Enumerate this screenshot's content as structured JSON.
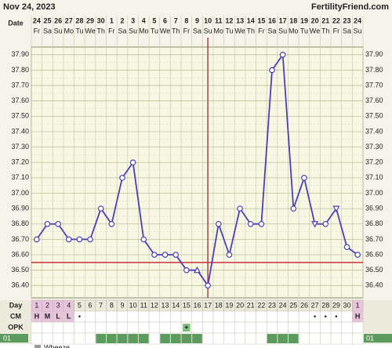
{
  "chart_data": {
    "type": "line",
    "title": "Nov 24, 2023",
    "source": "FertilityFriend.com",
    "date_label": "Date",
    "dates": [
      "24",
      "25",
      "26",
      "27",
      "28",
      "29",
      "30",
      "1",
      "2",
      "3",
      "4",
      "5",
      "6",
      "7",
      "8",
      "9",
      "10",
      "11",
      "12",
      "13",
      "14",
      "15",
      "16",
      "17",
      "18",
      "19",
      "20",
      "21",
      "22",
      "23",
      "24"
    ],
    "weekdays": [
      "Fr",
      "Sa",
      "Su",
      "Mo",
      "Tu",
      "We",
      "Th",
      "Fr",
      "Sa",
      "Su",
      "Mo",
      "Tu",
      "We",
      "Th",
      "Fr",
      "Sa",
      "Su",
      "Mo",
      "Tu",
      "We",
      "Th",
      "Fr",
      "Sa",
      "Su",
      "Mo",
      "Tu",
      "We",
      "Th",
      "Fr",
      "Sa",
      "Su"
    ],
    "day_label": "Day",
    "days": [
      1,
      2,
      3,
      4,
      5,
      6,
      7,
      8,
      9,
      10,
      11,
      12,
      13,
      14,
      15,
      16,
      17,
      18,
      19,
      20,
      21,
      22,
      23,
      24,
      25,
      26,
      27,
      28,
      29,
      30,
      1
    ],
    "values": [
      36.7,
      36.8,
      36.8,
      36.7,
      36.7,
      36.7,
      36.9,
      36.8,
      37.1,
      37.2,
      36.7,
      36.6,
      36.6,
      36.6,
      36.5,
      36.5,
      36.4,
      36.8,
      36.6,
      36.9,
      36.8,
      36.8,
      37.8,
      37.9,
      36.9,
      37.1,
      36.8,
      36.8,
      36.9,
      36.65,
      36.6
    ],
    "markers": [
      "circle",
      "circle",
      "circle",
      "circle",
      "circle",
      "circle",
      "circle",
      "circle",
      "circle",
      "circle",
      "circle",
      "circle",
      "circle",
      "circle",
      "circle",
      "triangle-up",
      "circle",
      "circle",
      "circle",
      "circle",
      "circle",
      "circle",
      "circle",
      "circle",
      "circle",
      "circle",
      "triangle-down",
      "circle",
      "triangle-down",
      "circle",
      "circle"
    ],
    "color": "#4b3fb4",
    "ylim": [
      36.32,
      37.95
    ],
    "yticks": [
      {
        "value": 36.4,
        "label": "36.40"
      },
      {
        "value": 36.5,
        "label": "36.50"
      },
      {
        "value": 36.6,
        "label": "36.60"
      },
      {
        "value": 36.7,
        "label": "36.70"
      },
      {
        "value": 36.8,
        "label": "36.80"
      },
      {
        "value": 36.9,
        "label": "36.90"
      },
      {
        "value": 37.0,
        "label": "37.00"
      },
      {
        "value": 37.1,
        "label": "37.10"
      },
      {
        "value": 37.2,
        "label": "37.20"
      },
      {
        "value": 37.3,
        "label": "37.30"
      },
      {
        "value": 37.4,
        "label": "37.40"
      },
      {
        "value": 37.5,
        "label": "37.50"
      },
      {
        "value": 37.6,
        "label": "37.60"
      },
      {
        "value": 37.7,
        "label": "37.70"
      },
      {
        "value": 37.8,
        "label": "37.80"
      },
      {
        "value": 37.9,
        "label": "37.90"
      }
    ],
    "grid": true,
    "coverline": 36.55,
    "ovulation_day": 17,
    "period_days": [
      1,
      2,
      3,
      4,
      31
    ],
    "cm": {
      "label": "CM",
      "entries": [
        "H",
        "M",
        "L",
        "L",
        "•",
        null,
        null,
        null,
        null,
        null,
        null,
        null,
        null,
        null,
        null,
        null,
        null,
        null,
        null,
        null,
        null,
        null,
        null,
        null,
        null,
        null,
        "•",
        "•",
        "•",
        null,
        "H"
      ]
    },
    "opk": {
      "label": "OPK",
      "entries": [
        null,
        null,
        null,
        null,
        null,
        null,
        null,
        null,
        null,
        null,
        null,
        null,
        null,
        null,
        "+",
        null,
        null,
        null,
        null,
        null,
        null,
        null,
        null,
        null,
        null,
        null,
        null,
        null,
        null,
        null,
        null
      ]
    },
    "custom": {
      "label": "01",
      "marked_days": [
        7,
        8,
        9,
        10,
        11,
        13,
        14,
        15,
        16,
        23,
        24,
        25
      ]
    },
    "symptom": "Wheeze"
  }
}
